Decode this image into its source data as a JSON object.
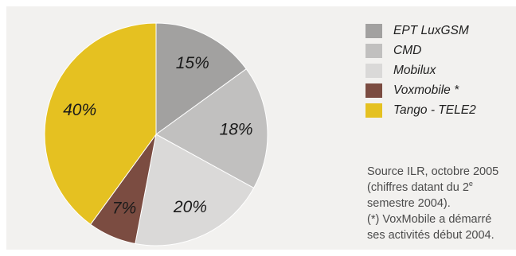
{
  "chart_data": {
    "type": "pie",
    "slices": [
      {
        "name": "EPT LuxGSM",
        "value": 15,
        "label": "15%",
        "color": "#a2a1a0"
      },
      {
        "name": "CMD",
        "value": 18,
        "label": "18%",
        "color": "#c1c0bf"
      },
      {
        "name": "Mobilux",
        "value": 20,
        "label": "20%",
        "color": "#dad9d8"
      },
      {
        "name": "Voxmobile *",
        "value": 7,
        "label": "7%",
        "color": "#7b4c41"
      },
      {
        "name": "Tango - TELE2",
        "value": 40,
        "label": "40%",
        "color": "#e5c121"
      }
    ],
    "start": "12 o'clock",
    "direction": "clockwise",
    "legend_position": "right"
  },
  "note": {
    "line1": "Source ILR, octobre 2005",
    "line2a": "(chiffres datant du 2",
    "line2sup": "e",
    "line3": "semestre 2004).",
    "line4": "(*) VoxMobile a démarré",
    "line5": "ses activités début 2004."
  }
}
